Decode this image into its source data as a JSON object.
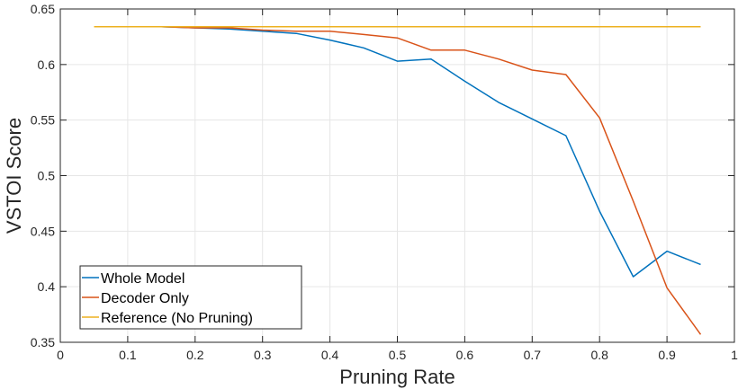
{
  "chart_data": {
    "type": "line",
    "title": "",
    "xlabel": "Pruning Rate",
    "ylabel": "VSTOI Score",
    "xlim": [
      0,
      1
    ],
    "ylim": [
      0.35,
      0.65
    ],
    "xticks": [
      0,
      0.1,
      0.2,
      0.3,
      0.4,
      0.5,
      0.6,
      0.7,
      0.8,
      0.9,
      1
    ],
    "xtick_labels": [
      "0",
      "0.1",
      "0.2",
      "0.3",
      "0.4",
      "0.5",
      "0.6",
      "0.7",
      "0.8",
      "0.9",
      "1"
    ],
    "yticks": [
      0.35,
      0.4,
      0.45,
      0.5,
      0.55,
      0.6,
      0.65
    ],
    "ytick_labels": [
      "0.35",
      "0.4",
      "0.45",
      "0.5",
      "0.55",
      "0.6",
      "0.65"
    ],
    "grid": true,
    "legend_position": "bottom-left",
    "x": [
      0.05,
      0.1,
      0.15,
      0.2,
      0.25,
      0.3,
      0.35,
      0.4,
      0.45,
      0.5,
      0.55,
      0.6,
      0.65,
      0.7,
      0.75,
      0.8,
      0.85,
      0.9,
      0.95
    ],
    "series": [
      {
        "name": "Whole Model",
        "color": "#0072BD",
        "values": [
          0.634,
          0.634,
          0.634,
          0.633,
          0.632,
          0.63,
          0.628,
          0.622,
          0.615,
          0.603,
          0.605,
          0.585,
          0.566,
          0.551,
          0.536,
          0.468,
          0.409,
          0.432,
          0.42
        ]
      },
      {
        "name": "Decoder Only",
        "color": "#D95319",
        "values": [
          0.634,
          0.634,
          0.634,
          0.633,
          0.633,
          0.631,
          0.63,
          0.63,
          0.627,
          0.624,
          0.613,
          0.613,
          0.605,
          0.595,
          0.591,
          0.552,
          0.477,
          0.399,
          0.357
        ]
      },
      {
        "name": "Reference (No Pruning)",
        "color": "#EDB120",
        "values": [
          0.634,
          0.634,
          0.634,
          0.634,
          0.634,
          0.634,
          0.634,
          0.634,
          0.634,
          0.634,
          0.634,
          0.634,
          0.634,
          0.634,
          0.634,
          0.634,
          0.634,
          0.634,
          0.634
        ]
      }
    ]
  }
}
